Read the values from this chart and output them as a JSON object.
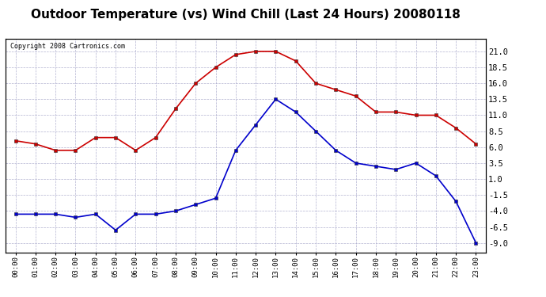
{
  "title": "Outdoor Temperature (vs) Wind Chill (Last 24 Hours) 20080118",
  "copyright": "Copyright 2008 Cartronics.com",
  "hours": [
    "00:00",
    "01:00",
    "02:00",
    "03:00",
    "04:00",
    "05:00",
    "06:00",
    "07:00",
    "08:00",
    "09:00",
    "10:00",
    "11:00",
    "12:00",
    "13:00",
    "14:00",
    "15:00",
    "16:00",
    "17:00",
    "18:00",
    "19:00",
    "20:00",
    "21:00",
    "22:00",
    "23:00"
  ],
  "temp_red": [
    7.0,
    6.5,
    5.5,
    5.5,
    7.5,
    7.5,
    5.5,
    7.5,
    12.0,
    16.0,
    18.5,
    20.5,
    21.0,
    21.0,
    19.5,
    16.0,
    15.0,
    14.0,
    11.5,
    11.5,
    11.0,
    11.0,
    9.0,
    6.5
  ],
  "wind_chill_blue": [
    -4.5,
    -4.5,
    -4.5,
    -5.0,
    -4.5,
    -7.0,
    -4.5,
    -4.5,
    -4.0,
    -3.0,
    -2.0,
    5.5,
    9.5,
    13.5,
    11.5,
    8.5,
    5.5,
    3.5,
    3.0,
    2.5,
    3.5,
    1.5,
    -2.5,
    -9.0
  ],
  "red_color": "#cc0000",
  "blue_color": "#0000cc",
  "bg_color": "#ffffff",
  "plot_bg_color": "#ffffff",
  "grid_color": "#aaaacc",
  "title_fontsize": 11,
  "copyright_fontsize": 6,
  "ylabel_right_values": [
    21.0,
    18.5,
    16.0,
    13.5,
    11.0,
    8.5,
    6.0,
    3.5,
    1.0,
    -1.5,
    -4.0,
    -6.5,
    -9.0
  ],
  "ylim": [
    -10.5,
    23.0
  ]
}
